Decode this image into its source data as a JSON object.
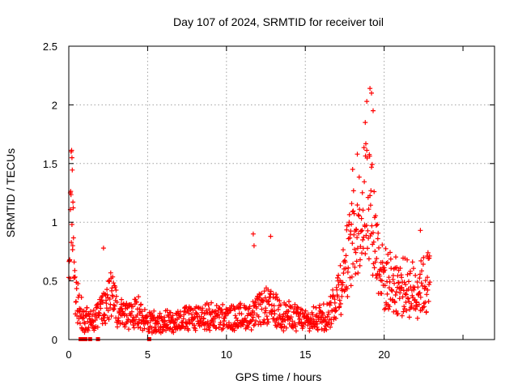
{
  "chart_data": {
    "type": "scatter",
    "title": "Day 107 of 2024, SRMTID for receiver toil",
    "xlabel": "GPS time / hours",
    "ylabel": "SRMTID / TECUs",
    "xlim": [
      0,
      27
    ],
    "ylim": [
      0,
      2.5
    ],
    "x_ticks": [
      0,
      5,
      10,
      15,
      20
    ],
    "y_ticks": [
      0,
      0.5,
      1,
      1.5,
      2,
      2.5
    ],
    "x_tick_labels": [
      "0",
      "5",
      "10",
      "15",
      "20"
    ],
    "y_tick_labels": [
      "0",
      "0.5",
      "1",
      "1.5",
      "2",
      "2.5"
    ],
    "grid": true,
    "marker": "+",
    "color": "#ff0000",
    "series": [
      {
        "name": "SRMTID",
        "x_start": 0.0,
        "x_end": 22.9,
        "step": 0.02,
        "profile": [
          [
            0.0,
            0.35
          ],
          [
            0.1,
            0.9
          ],
          [
            0.2,
            1.3
          ],
          [
            0.3,
            0.65
          ],
          [
            0.45,
            0.45
          ],
          [
            0.6,
            0.3
          ],
          [
            0.9,
            0.18
          ],
          [
            1.4,
            0.15
          ],
          [
            1.8,
            0.2
          ],
          [
            2.3,
            0.3
          ],
          [
            2.7,
            0.38
          ],
          [
            3.2,
            0.22
          ],
          [
            4.0,
            0.2
          ],
          [
            4.3,
            0.3
          ],
          [
            4.7,
            0.15
          ],
          [
            6.0,
            0.15
          ],
          [
            7.5,
            0.18
          ],
          [
            8.6,
            0.2
          ],
          [
            10.0,
            0.18
          ],
          [
            11.5,
            0.2
          ],
          [
            12.5,
            0.28
          ],
          [
            13.5,
            0.22
          ],
          [
            14.5,
            0.18
          ],
          [
            15.3,
            0.15
          ],
          [
            16.0,
            0.2
          ],
          [
            16.5,
            0.22
          ],
          [
            17.0,
            0.38
          ],
          [
            17.5,
            0.6
          ],
          [
            18.0,
            0.85
          ],
          [
            18.5,
            1.05
          ],
          [
            19.0,
            1.3
          ],
          [
            19.5,
            0.8
          ],
          [
            20.0,
            0.5
          ],
          [
            21.0,
            0.45
          ],
          [
            22.0,
            0.42
          ],
          [
            22.9,
            0.5
          ]
        ],
        "spikes": [
          {
            "x": 0.15,
            "y": 1.6
          },
          {
            "x": 0.2,
            "y": 1.55
          },
          {
            "x": 0.1,
            "y": 1.25
          },
          {
            "x": 0.25,
            "y": 0.8
          },
          {
            "x": 2.2,
            "y": 0.78
          },
          {
            "x": 11.7,
            "y": 0.9
          },
          {
            "x": 11.75,
            "y": 0.8
          },
          {
            "x": 12.8,
            "y": 0.88
          },
          {
            "x": 18.0,
            "y": 1.45
          },
          {
            "x": 18.3,
            "y": 1.58
          },
          {
            "x": 18.8,
            "y": 1.85
          },
          {
            "x": 18.9,
            "y": 2.03
          },
          {
            "x": 19.1,
            "y": 2.14
          },
          {
            "x": 19.2,
            "y": 2.1
          },
          {
            "x": 19.3,
            "y": 1.95
          },
          {
            "x": 22.3,
            "y": 0.93
          }
        ],
        "zero_markers": [
          0.75,
          0.95,
          1.05,
          1.35,
          1.85,
          5.1
        ]
      }
    ]
  }
}
